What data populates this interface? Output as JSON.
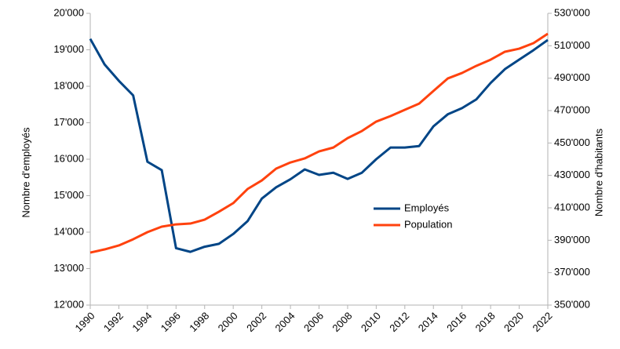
{
  "chart_data": {
    "type": "line",
    "x": [
      1990,
      1991,
      1992,
      1993,
      1994,
      1995,
      1996,
      1997,
      1998,
      1999,
      2000,
      2001,
      2002,
      2003,
      2004,
      2005,
      2006,
      2007,
      2008,
      2009,
      2010,
      2011,
      2012,
      2013,
      2014,
      2015,
      2016,
      2017,
      2018,
      2019,
      2020,
      2021,
      2022
    ],
    "xlim": [
      1990,
      2022
    ],
    "xticks": [
      1990,
      1992,
      1994,
      1996,
      1998,
      2000,
      2002,
      2004,
      2006,
      2008,
      2010,
      2012,
      2014,
      2016,
      2018,
      2020,
      2022
    ],
    "ylabel": "Nombre d'employés",
    "y2label": "Nombre d'habitants",
    "ylim": [
      12000,
      20000
    ],
    "yticks": [
      {
        "value": 12000,
        "label": "12'000"
      },
      {
        "value": 13000,
        "label": "13'000"
      },
      {
        "value": 14000,
        "label": "14'000"
      },
      {
        "value": 15000,
        "label": "15'000"
      },
      {
        "value": 16000,
        "label": "16'000"
      },
      {
        "value": 17000,
        "label": "17'000"
      },
      {
        "value": 18000,
        "label": "18'000"
      },
      {
        "value": 19000,
        "label": "19'000"
      },
      {
        "value": 20000,
        "label": "20'000"
      }
    ],
    "y2lim": [
      350000,
      530000
    ],
    "y2ticks": [
      {
        "value": 350000,
        "label": "350'000"
      },
      {
        "value": 370000,
        "label": "370'000"
      },
      {
        "value": 390000,
        "label": "390'000"
      },
      {
        "value": 410000,
        "label": "410'000"
      },
      {
        "value": 430000,
        "label": "430'000"
      },
      {
        "value": 450000,
        "label": "450'000"
      },
      {
        "value": 470000,
        "label": "470'000"
      },
      {
        "value": 490000,
        "label": "490'000"
      },
      {
        "value": 510000,
        "label": "510'000"
      },
      {
        "value": 530000,
        "label": "530'000"
      }
    ],
    "grid": false,
    "legend": "right",
    "series": [
      {
        "name": "Employés",
        "color": "#004586",
        "values": [
          19300,
          18600,
          18150,
          17750,
          15930,
          15700,
          13560,
          13460,
          13600,
          13680,
          13950,
          14300,
          14920,
          15230,
          15450,
          15720,
          15570,
          15630,
          15460,
          15630,
          16000,
          16320,
          16320,
          16360,
          16900,
          17230,
          17400,
          17640,
          18090,
          18470,
          18730,
          18990,
          19270
        ]
      },
      {
        "name": "Population",
        "color": "#ff420e",
        "axis": "y2",
        "values": [
          382400,
          384350,
          386800,
          390600,
          395000,
          398400,
          399800,
          400300,
          402700,
          407600,
          412900,
          421600,
          426900,
          434200,
          438000,
          440500,
          444800,
          447200,
          453000,
          457400,
          463200,
          466600,
          470500,
          474300,
          482100,
          489800,
          493200,
          497600,
          501400,
          506300,
          508200,
          511600,
          517400
        ]
      }
    ]
  }
}
